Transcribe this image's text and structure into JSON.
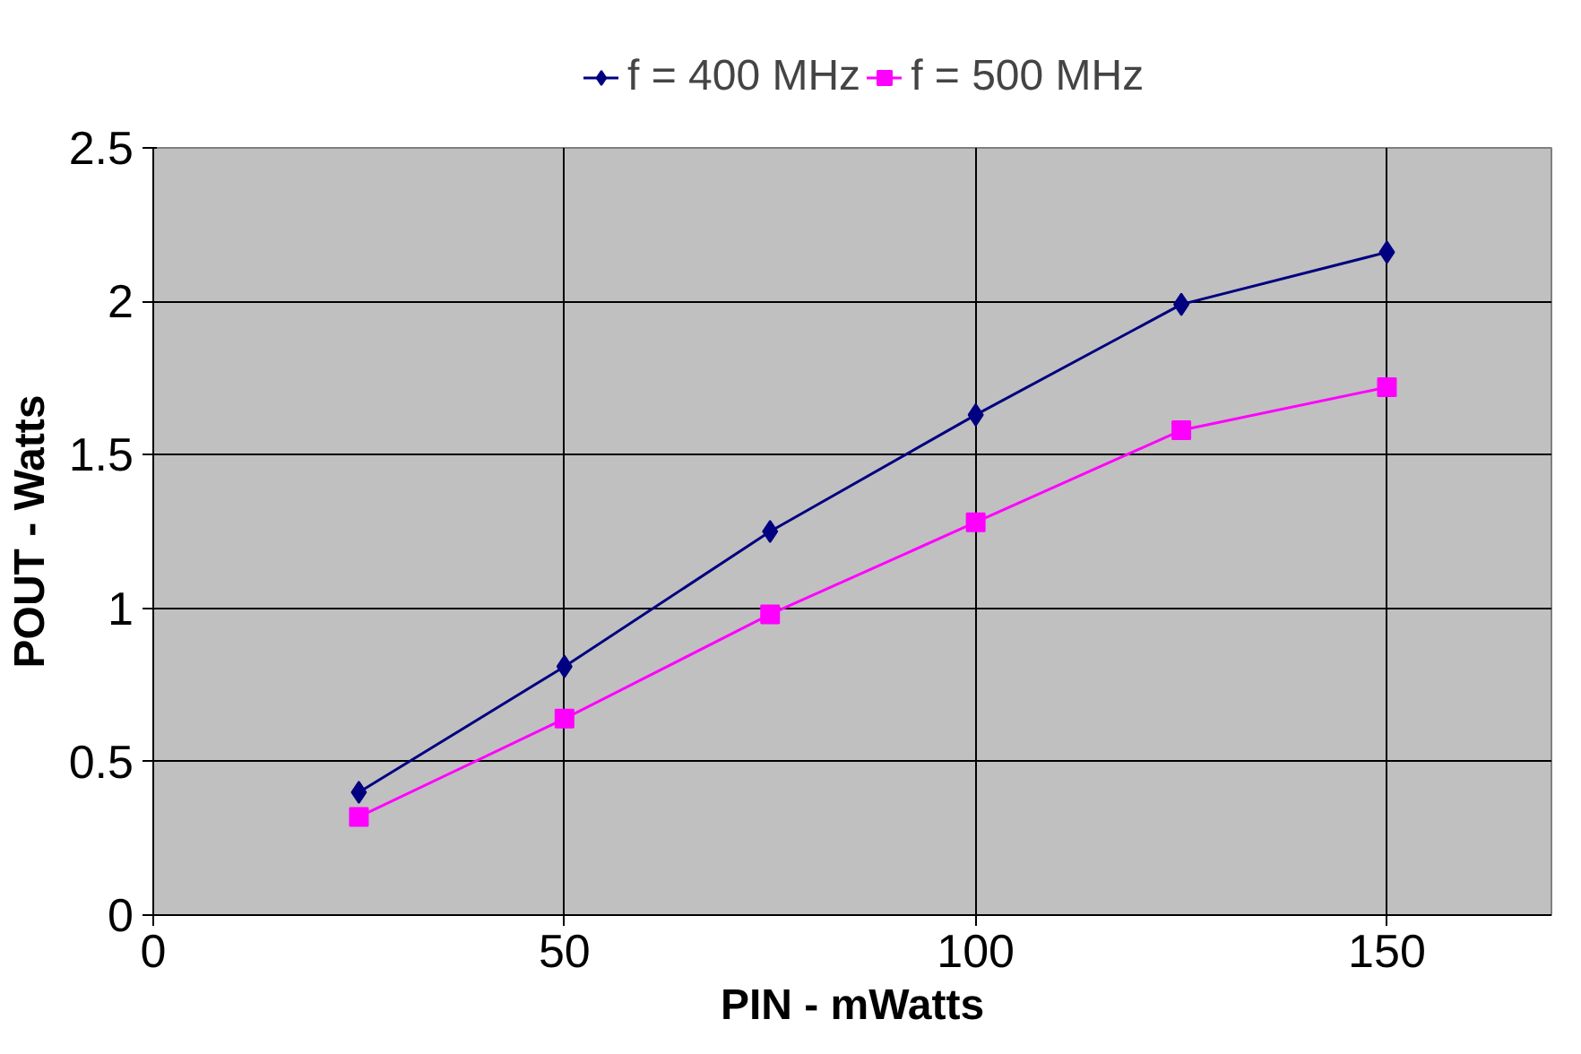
{
  "chart_data": {
    "type": "line",
    "xlabel": "PIN - mWatts",
    "ylabel": "POUT - Watts",
    "x": [
      25,
      50,
      75,
      100,
      125,
      150
    ],
    "series": [
      {
        "name": "f = 400 MHz",
        "color": "#000080",
        "marker": "diamond",
        "values": [
          0.4,
          0.81,
          1.25,
          1.63,
          1.99,
          2.16
        ]
      },
      {
        "name": "f = 500 MHz",
        "color": "#ff00ff",
        "marker": "square",
        "values": [
          0.32,
          0.64,
          0.98,
          1.28,
          1.58,
          1.72
        ]
      }
    ],
    "xlim": [
      0,
      170
    ],
    "xticks": [
      0,
      50,
      100,
      150
    ],
    "ylim": [
      0,
      2.5
    ],
    "yticks": [
      0,
      0.5,
      1,
      1.5,
      2,
      2.5
    ],
    "grid": true,
    "legend": "top"
  }
}
